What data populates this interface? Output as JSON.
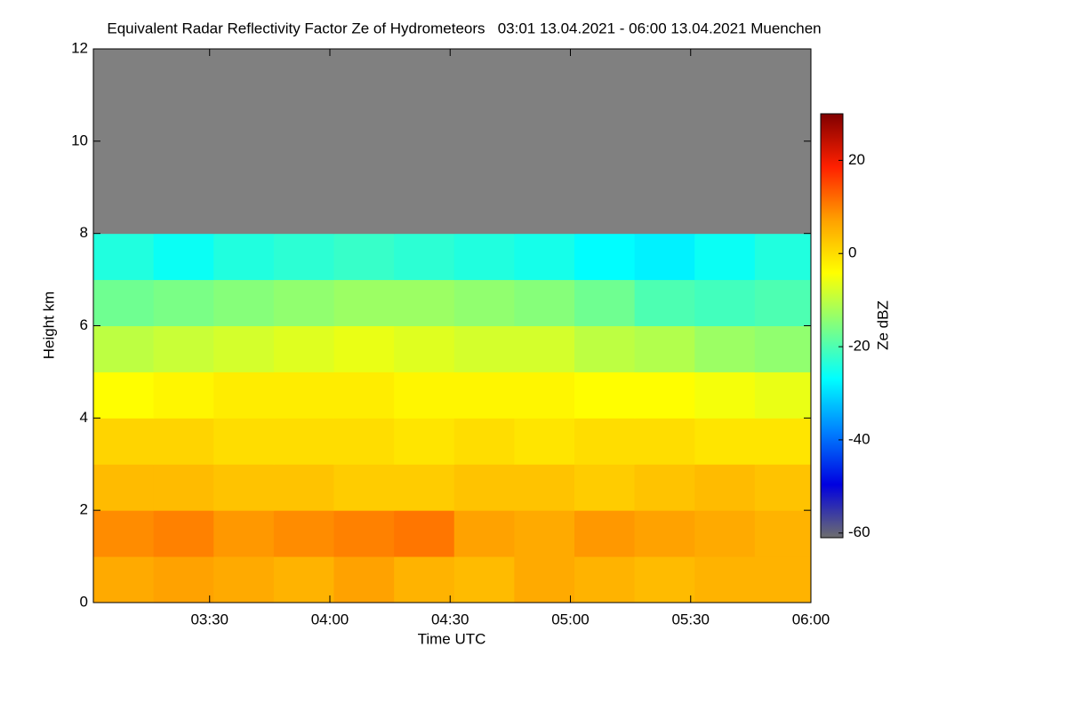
{
  "chart_data": {
    "type": "heatmap",
    "title": "Equivalent Radar Reflectivity Factor Ze of Hydrometeors   03:01 13.04.2021 - 06:00 13.04.2021 Muenchen",
    "xlabel": "Time UTC",
    "ylabel": "Height km",
    "colorbar_label": "Ze dBZ",
    "xlim": [
      "03:01",
      "06:00"
    ],
    "xticks": [
      "03:30",
      "04:00",
      "04:30",
      "05:00",
      "05:30",
      "06:00"
    ],
    "ylim": [
      0,
      12
    ],
    "yticks": [
      0,
      2,
      4,
      6,
      8,
      10,
      12
    ],
    "zlim": [
      -61,
      30
    ],
    "zticks": [
      -60,
      -40,
      -20,
      0,
      20
    ],
    "colormap": [
      "#6e6e6e",
      "#0000e0",
      "#0080ff",
      "#00ffff",
      "#80ff80",
      "#ffff00",
      "#ffa000",
      "#ff2000",
      "#800000"
    ],
    "null_color": "#808080",
    "xbins": [
      "03:01",
      "03:16",
      "03:31",
      "03:46",
      "04:01",
      "04:16",
      "04:31",
      "04:46",
      "05:01",
      "05:16",
      "05:31",
      "05:46",
      "06:00"
    ],
    "ybins": [
      0,
      1,
      2,
      3,
      4,
      5,
      6,
      7,
      8,
      9,
      10,
      11,
      12
    ],
    "z": [
      [
        6,
        7,
        6,
        5,
        7,
        5,
        4,
        6,
        5,
        4,
        5,
        5
      ],
      [
        9,
        10,
        8,
        9,
        10,
        11,
        7,
        6,
        8,
        7,
        6,
        5
      ],
      [
        4,
        4,
        3,
        3,
        2,
        2,
        3,
        3,
        2,
        3,
        4,
        3
      ],
      [
        1,
        1,
        0,
        0,
        0,
        -1,
        0,
        -1,
        0,
        0,
        -1,
        -1
      ],
      [
        -4,
        -3,
        -2,
        -2,
        -2,
        -3,
        -3,
        -3,
        -4,
        -4,
        -5,
        -6
      ],
      [
        -10,
        -9,
        -8,
        -7,
        -6,
        -7,
        -8,
        -8,
        -10,
        -11,
        -13,
        -14
      ],
      [
        -17,
        -16,
        -15,
        -14,
        -13,
        -13,
        -14,
        -15,
        -17,
        -20,
        -21,
        -20
      ],
      [
        -24,
        -26,
        -24,
        -23,
        -22,
        -23,
        -24,
        -25,
        -27,
        -28,
        -26,
        -24
      ],
      [
        null,
        null,
        null,
        null,
        null,
        null,
        null,
        null,
        null,
        null,
        null,
        null
      ],
      [
        null,
        null,
        null,
        null,
        null,
        null,
        null,
        null,
        null,
        null,
        null,
        null
      ],
      [
        null,
        null,
        null,
        null,
        null,
        null,
        null,
        null,
        null,
        null,
        null,
        null
      ],
      [
        null,
        null,
        null,
        null,
        null,
        null,
        null,
        null,
        null,
        null,
        null,
        null
      ]
    ]
  }
}
